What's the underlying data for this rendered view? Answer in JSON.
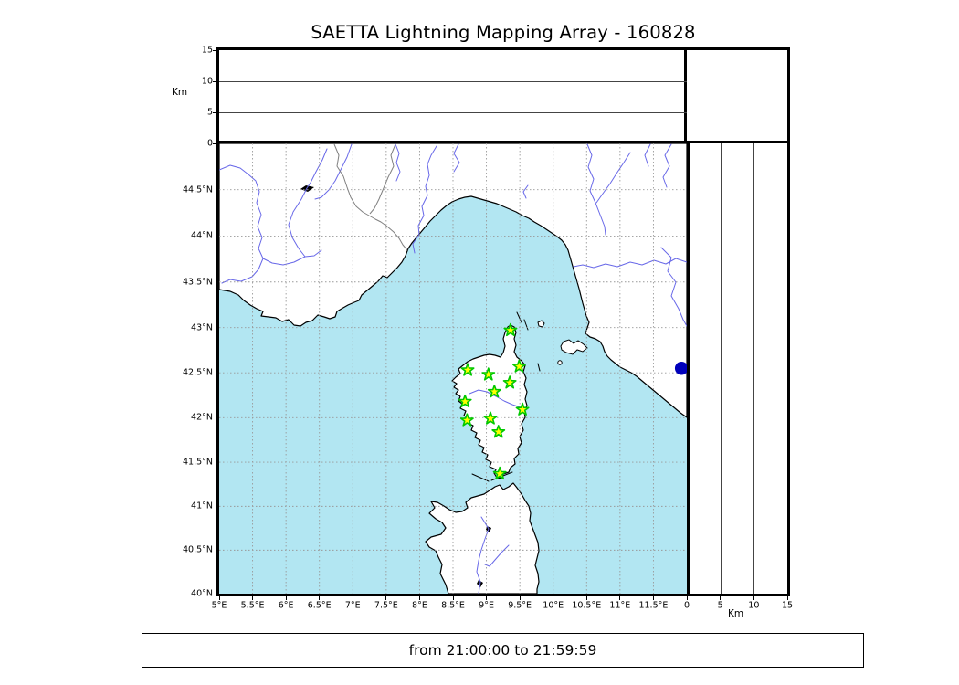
{
  "title": "SAETTA Lightning Mapping Array - 160828",
  "footer": {
    "time_range": "from 21:00:00 to 21:59:59"
  },
  "colors": {
    "sea": "#b2e6f2",
    "land": "#ffffff",
    "coastline": "#000000",
    "river": "#6868e8",
    "frontier": "#808080",
    "map_grid": "#999999",
    "panel_grid": "#444444",
    "station_fill": "#ffff00",
    "station_stroke": "#00c800",
    "source_dot": "#0000bb"
  },
  "axes": {
    "longitude": {
      "tick_labels": [
        "5°E",
        "5.5°E",
        "6°E",
        "6.5°E",
        "7°E",
        "7.5°E",
        "8°E",
        "8.5°E",
        "9°E",
        "9.5°E",
        "10°E",
        "10.5°E",
        "11°E",
        "11.5°E"
      ],
      "tick_values": [
        5,
        5.5,
        6,
        6.5,
        7,
        7.5,
        8,
        8.5,
        9,
        9.5,
        10,
        10.5,
        11,
        11.5
      ]
    },
    "latitude": {
      "tick_labels": [
        "44.5°N",
        "44°N",
        "43.5°N",
        "43°N",
        "42.5°N",
        "42°N",
        "41.5°N",
        "41°N",
        "40.5°N",
        "40°N"
      ],
      "tick_values": [
        44.5,
        44,
        43.5,
        43,
        42.5,
        42,
        41.5,
        41,
        40.5,
        40
      ]
    },
    "altitude_left": {
      "label": "Km",
      "tick_labels": [
        "0",
        "5",
        "10",
        "15"
      ],
      "tick_values": [
        0,
        5,
        10,
        15
      ]
    },
    "altitude_bottom": {
      "label": "Km",
      "tick_labels": [
        "0",
        "5",
        "10",
        "15"
      ],
      "tick_values": [
        0,
        5,
        10,
        15
      ]
    }
  },
  "chart_data": {
    "type": "scatter",
    "title": "SAETTA Lightning Mapping Array - 160828",
    "time_window": "from 21:00:00 to 21:59:59",
    "projection": "mercator",
    "map_extent": {
      "lon_min": 5,
      "lon_max": 12,
      "lat_min": 40,
      "lat_max": 45.03
    },
    "grid_interval_deg": 0.5,
    "altitude_axis_km": {
      "min": 0,
      "max": 15,
      "ticks": [
        0,
        5,
        10,
        15
      ],
      "gridlines_km": [
        5,
        10
      ]
    },
    "lma_stations_lon_lat": [
      [
        9.36,
        42.97
      ],
      [
        8.72,
        42.53
      ],
      [
        9.03,
        42.48
      ],
      [
        9.49,
        42.57
      ],
      [
        9.35,
        42.39
      ],
      [
        9.12,
        42.29
      ],
      [
        8.68,
        42.18
      ],
      [
        9.54,
        42.09
      ],
      [
        9.06,
        41.99
      ],
      [
        8.71,
        41.97
      ],
      [
        9.18,
        41.84
      ],
      [
        9.2,
        41.37
      ]
    ],
    "source_points": [
      {
        "lon": 11.92,
        "lat": 42.55,
        "alt_km": 0
      }
    ]
  }
}
